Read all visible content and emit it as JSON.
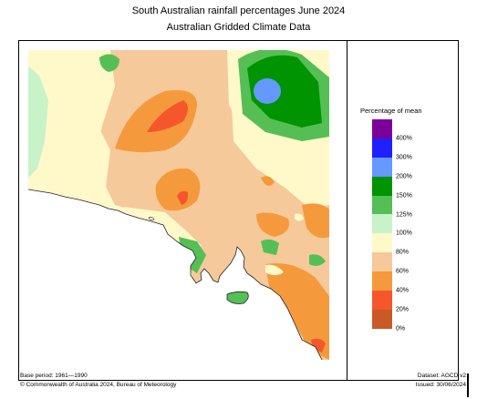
{
  "header": {
    "title": "South Australian rainfall percentages   June 2024",
    "subtitle": "Australian Gridded Climate Data"
  },
  "legend": {
    "title": "Percentage of mean",
    "colors": [
      "#7a0099",
      "#1f1fff",
      "#6699ff",
      "#009400",
      "#55bf55",
      "#c8f2c8",
      "#fff8c8",
      "#f5c99a",
      "#f59a3c",
      "#f5572a",
      "#c85a28"
    ],
    "ticks": [
      "400%",
      "300%",
      "200%",
      "150%",
      "125%",
      "100%",
      "80%",
      "60%",
      "40%",
      "20%",
      "0%"
    ]
  },
  "map_colors": {
    "sea": "#ffffff",
    "coast": "#222222"
  },
  "footer": {
    "base_period": "Base period: 1961—1990",
    "copyright": "© Commonwealth of Australia 2024, Bureau of Meteorology",
    "dataset": "Dataset: AGCD v2",
    "issued": "Issued: 30/06/2024"
  }
}
